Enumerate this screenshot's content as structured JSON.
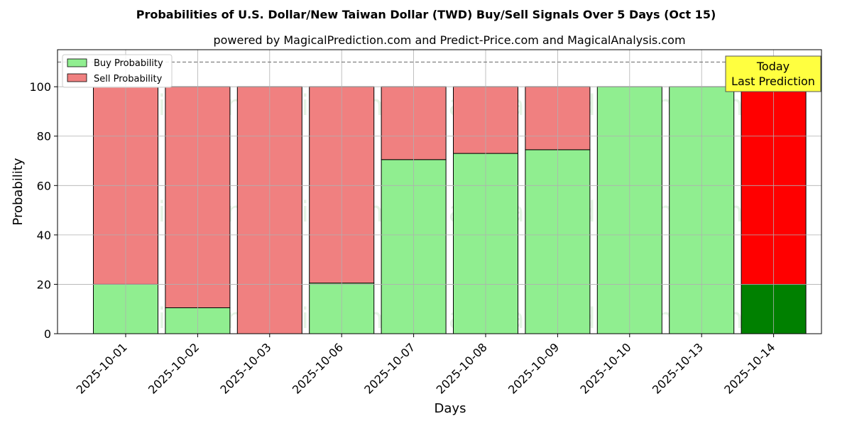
{
  "chart_data": {
    "type": "bar",
    "stacked": true,
    "title": "Probabilities of U.S. Dollar/New Taiwan Dollar (TWD) Buy/Sell Signals Over 5 Days (Oct 15)",
    "subtitle": "powered by MagicalPrediction.com and Predict-Price.com and MagicalAnalysis.com",
    "xlabel": "Days",
    "ylabel": "Probability",
    "ylim": [
      0,
      115
    ],
    "yticks": [
      0,
      20,
      40,
      60,
      80,
      100
    ],
    "grid": true,
    "reference_line": 110,
    "categories": [
      "2025-10-01",
      "2025-10-02",
      "2025-10-03",
      "2025-10-06",
      "2025-10-07",
      "2025-10-08",
      "2025-10-09",
      "2025-10-10",
      "2025-10-13",
      "2025-10-14"
    ],
    "series": [
      {
        "name": "Buy Probability",
        "color": "#90ee90",
        "values": [
          20,
          10.5,
          0,
          20.5,
          70.5,
          73,
          74.5,
          100,
          100,
          20
        ]
      },
      {
        "name": "Sell Probability",
        "color": "#f08080",
        "values": [
          80,
          89.5,
          100,
          79.5,
          29.5,
          27,
          25.5,
          0,
          0,
          80
        ]
      }
    ],
    "highlight": {
      "index": 9,
      "buy_color": "#008000",
      "sell_color": "#ff0000"
    },
    "legend": {
      "placement": "top-left",
      "entries": [
        "Buy Probability",
        "Sell Probability"
      ]
    },
    "annotation": {
      "lines": [
        "Today",
        "Last Prediction"
      ],
      "background": "#ffff40"
    },
    "watermarks": [
      "MagicalAnalysis.com",
      "MagicalPrediction.com",
      "MagicalAnalysis.com",
      "MagicalPrediction.com",
      "MagicalAnalysis.com",
      "MagicalPrediction.com"
    ]
  }
}
